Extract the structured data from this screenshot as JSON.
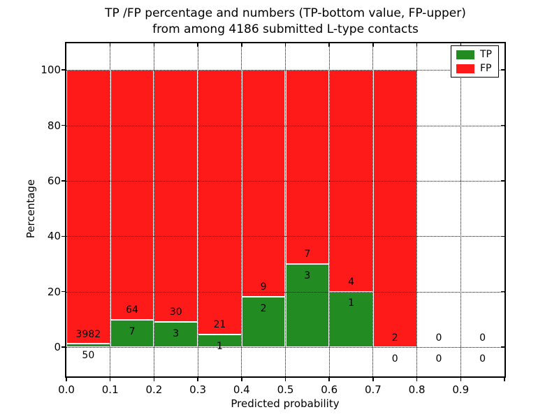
{
  "figure": {
    "title_line1": "TP /FP percentage and numbers (TP-bottom value, FP-upper)",
    "title_line2": "from among 4186 submitted L-type contacts"
  },
  "chart_data": {
    "type": "bar",
    "stacked": true,
    "normalized_to_percent": true,
    "title": "TP /FP percentage and numbers (TP-bottom value, FP-upper) from among 4186 submitted L-type contacts",
    "annotation_note": "TP-bottom value, FP-upper",
    "total_submitted_contacts": 4186,
    "xlabel": "Predicted probability",
    "ylabel": "Percentage",
    "xlim": [
      0.0,
      1.0
    ],
    "ylim": [
      -10.6,
      109.6
    ],
    "bin_edges": [
      0.0,
      0.1,
      0.2,
      0.3,
      0.4,
      0.5,
      0.6,
      0.7,
      0.8,
      0.9,
      1.0
    ],
    "xtick_labels": [
      "0.0",
      "0.1",
      "0.2",
      "0.3",
      "0.4",
      "0.5",
      "0.6",
      "0.7",
      "0.8",
      "0.9"
    ],
    "ytick_values": [
      0,
      20,
      40,
      60,
      80,
      100
    ],
    "ytick_labels": [
      "0",
      "20",
      "40",
      "60",
      "80",
      "100"
    ],
    "grid": {
      "style": "dotted",
      "color": "#000000",
      "above_bars": true
    },
    "bar_edge_color": "#ffffff",
    "series": [
      {
        "name": "TP",
        "color": "#228b22",
        "counts": [
          50,
          7,
          3,
          1,
          2,
          3,
          1,
          0,
          0,
          0
        ]
      },
      {
        "name": "FP",
        "color": "#ff1a1a",
        "counts": [
          3982,
          64,
          30,
          21,
          9,
          7,
          4,
          2,
          0,
          0
        ]
      }
    ],
    "tp_percent_by_bin": [
      1.24,
      9.86,
      9.09,
      4.55,
      18.18,
      30.0,
      20.0,
      0.0,
      0.0,
      0.0
    ],
    "legend": {
      "position": "upper-right",
      "entries": [
        {
          "label": "TP",
          "color": "#228b22"
        },
        {
          "label": "FP",
          "color": "#ff1a1a"
        }
      ]
    }
  }
}
